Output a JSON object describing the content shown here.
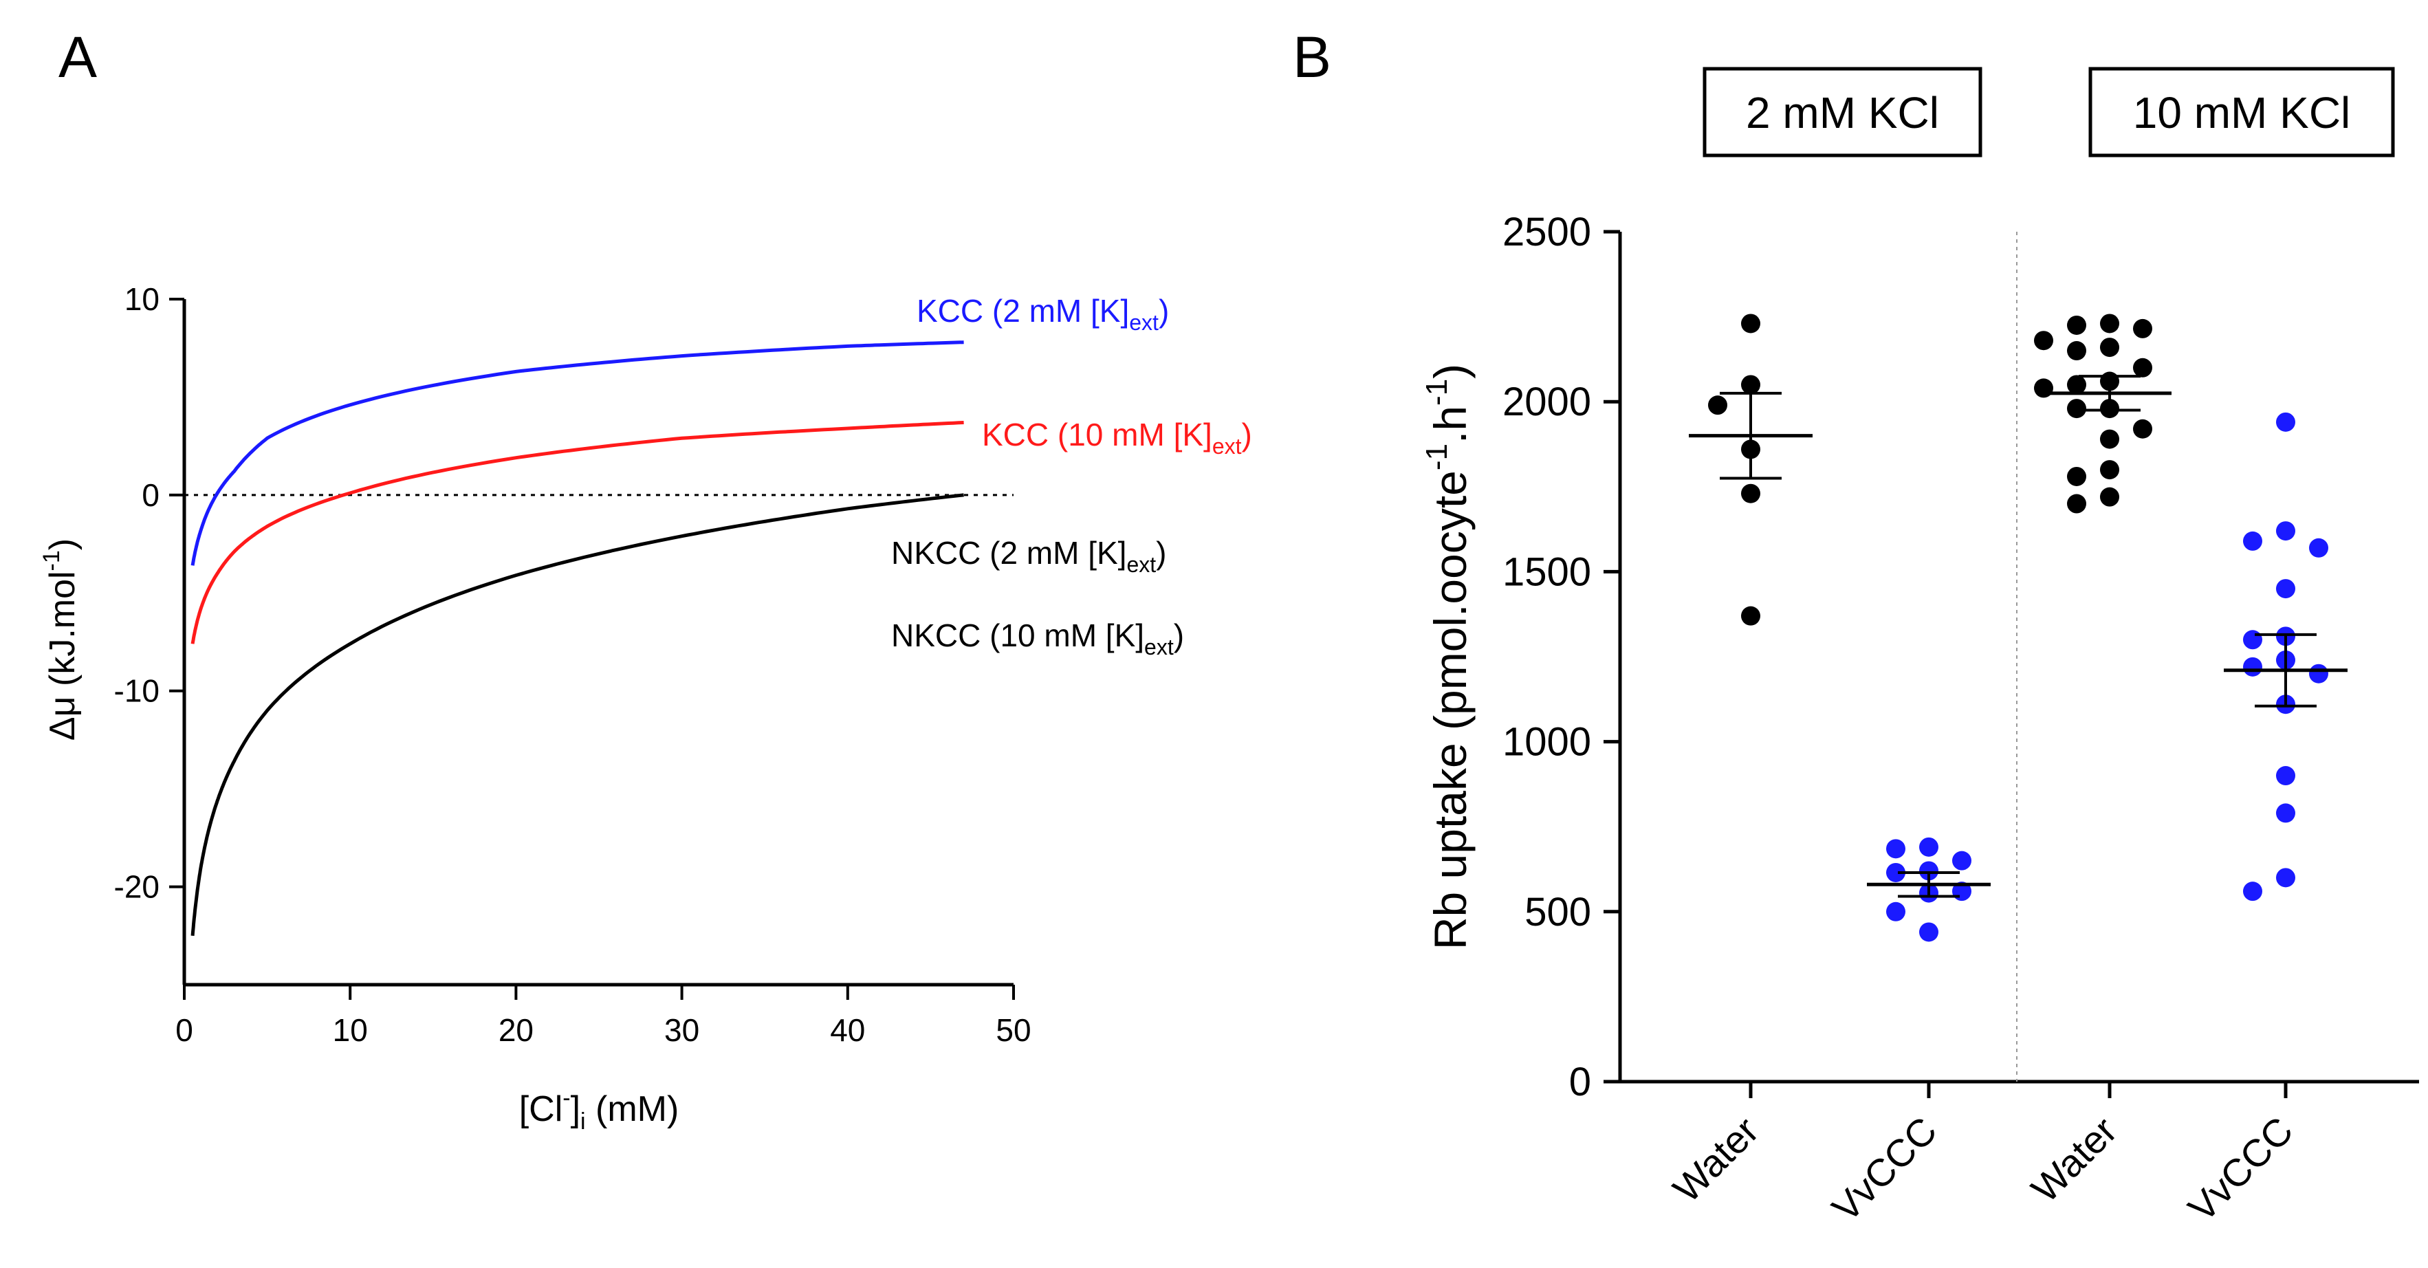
{
  "panels": {
    "a_letter": "A",
    "b_letter": "B"
  },
  "colors": {
    "kcc2": "#1a1aff",
    "kcc10": "#ff1a1a",
    "nkcc": "#000000",
    "water": "#000000",
    "vvccc": "#1a1aff"
  },
  "chart_data": [
    {
      "type": "line",
      "panel": "A",
      "xlabel": {
        "main": "[Cl",
        "sup": "-",
        "close": "]",
        "sub": "i",
        "unit": " (mM)"
      },
      "ylabel": {
        "symbol": "Δμ",
        "unit": " (kJ.mol",
        "sup": "-1",
        "close": ")"
      },
      "xlim": [
        0,
        50
      ],
      "ylim": [
        -25,
        10
      ],
      "xticks": [
        0,
        10,
        20,
        30,
        40,
        50
      ],
      "yticks": [
        -20,
        -10,
        0,
        10
      ],
      "zero_line": "dotted",
      "series": [
        {
          "name": "KCC (2 mM [K]ext)",
          "label_main": "KCC (2 mM [K]",
          "label_sub": "ext",
          "label_close": ")",
          "color": "#1a1aff",
          "K_ext": 2,
          "Cl_ext_for_zero": 2.2,
          "x": [
            0.5,
            1,
            2,
            3,
            5,
            10,
            20,
            30,
            40,
            47
          ],
          "y": [
            -3.6,
            -1.8,
            0.1,
            1.2,
            2.9,
            4.6,
            6.3,
            7.1,
            7.6,
            7.8
          ]
        },
        {
          "name": "KCC (10 mM [K]ext)",
          "label_main": "KCC (10 mM [K]",
          "label_sub": "ext",
          "label_close": ")",
          "color": "#ff1a1a",
          "K_ext": 10,
          "x": [
            0.5,
            1,
            2,
            3,
            5,
            10,
            20,
            30,
            40,
            47
          ],
          "y": [
            -7.6,
            -5.8,
            -4.0,
            -2.9,
            -1.6,
            0.1,
            1.9,
            2.9,
            3.4,
            3.7
          ]
        },
        {
          "name": "NKCC (2 mM [K]ext)",
          "label_main": "NKCC (2 mM [K]",
          "label_sub": "ext",
          "label_close": ")",
          "color": "#000000",
          "x": [
            0.5,
            1,
            2,
            3,
            5,
            10,
            20,
            30,
            40,
            47
          ],
          "y": [
            -22.5,
            -19.0,
            -15.6,
            -13.6,
            -11.0,
            -7.6,
            -4.1,
            -2.1,
            -0.7,
            0.0
          ]
        },
        {
          "name": "NKCC (10 mM [K]ext)",
          "label_main": "NKCC (10 mM [K]",
          "label_sub": "ext",
          "label_close": ")",
          "color": "#000000",
          "x": [],
          "y": []
        }
      ]
    },
    {
      "type": "scatter",
      "panel": "B",
      "ylabel": {
        "main": "Rb uptake (pmol.oocyte",
        "sup1": "-1",
        "mid": ".h",
        "sup2": "-1",
        "close": ")"
      },
      "ylim": [
        0,
        2500
      ],
      "yticks": [
        0,
        500,
        1000,
        1500,
        2000,
        2500
      ],
      "groups": [
        "2 mM KCl",
        "10 mM KCl"
      ],
      "categories": [
        "Water",
        "VvCCC",
        "Water",
        "VvCCC"
      ],
      "series": [
        {
          "name": "Water",
          "group": "2 mM KCl",
          "color": "#000000",
          "mean": 1900,
          "sem": 125,
          "points": [
            2230,
            2050,
            1990,
            1860,
            1730,
            1370
          ]
        },
        {
          "name": "VvCCC",
          "group": "2 mM KCl",
          "color": "#1a1aff",
          "mean": 580,
          "sem": 35,
          "points": [
            690,
            685,
            650,
            620,
            615,
            560,
            555,
            500,
            440
          ]
        },
        {
          "name": "Water",
          "group": "10 mM KCl",
          "color": "#000000",
          "mean": 2025,
          "sem": 50,
          "points": [
            2230,
            2225,
            2215,
            2180,
            2160,
            2150,
            2100,
            2060,
            2050,
            2040,
            1980,
            1980,
            1920,
            1890,
            1800,
            1780,
            1720,
            1700
          ]
        },
        {
          "name": "VvCCC",
          "group": "10 mM KCl",
          "color": "#1a1aff",
          "mean": 1210,
          "sem": 105,
          "points": [
            1940,
            1620,
            1590,
            1570,
            1450,
            1310,
            1300,
            1240,
            1220,
            1200,
            1110,
            900,
            790,
            600,
            560
          ]
        }
      ]
    }
  ]
}
